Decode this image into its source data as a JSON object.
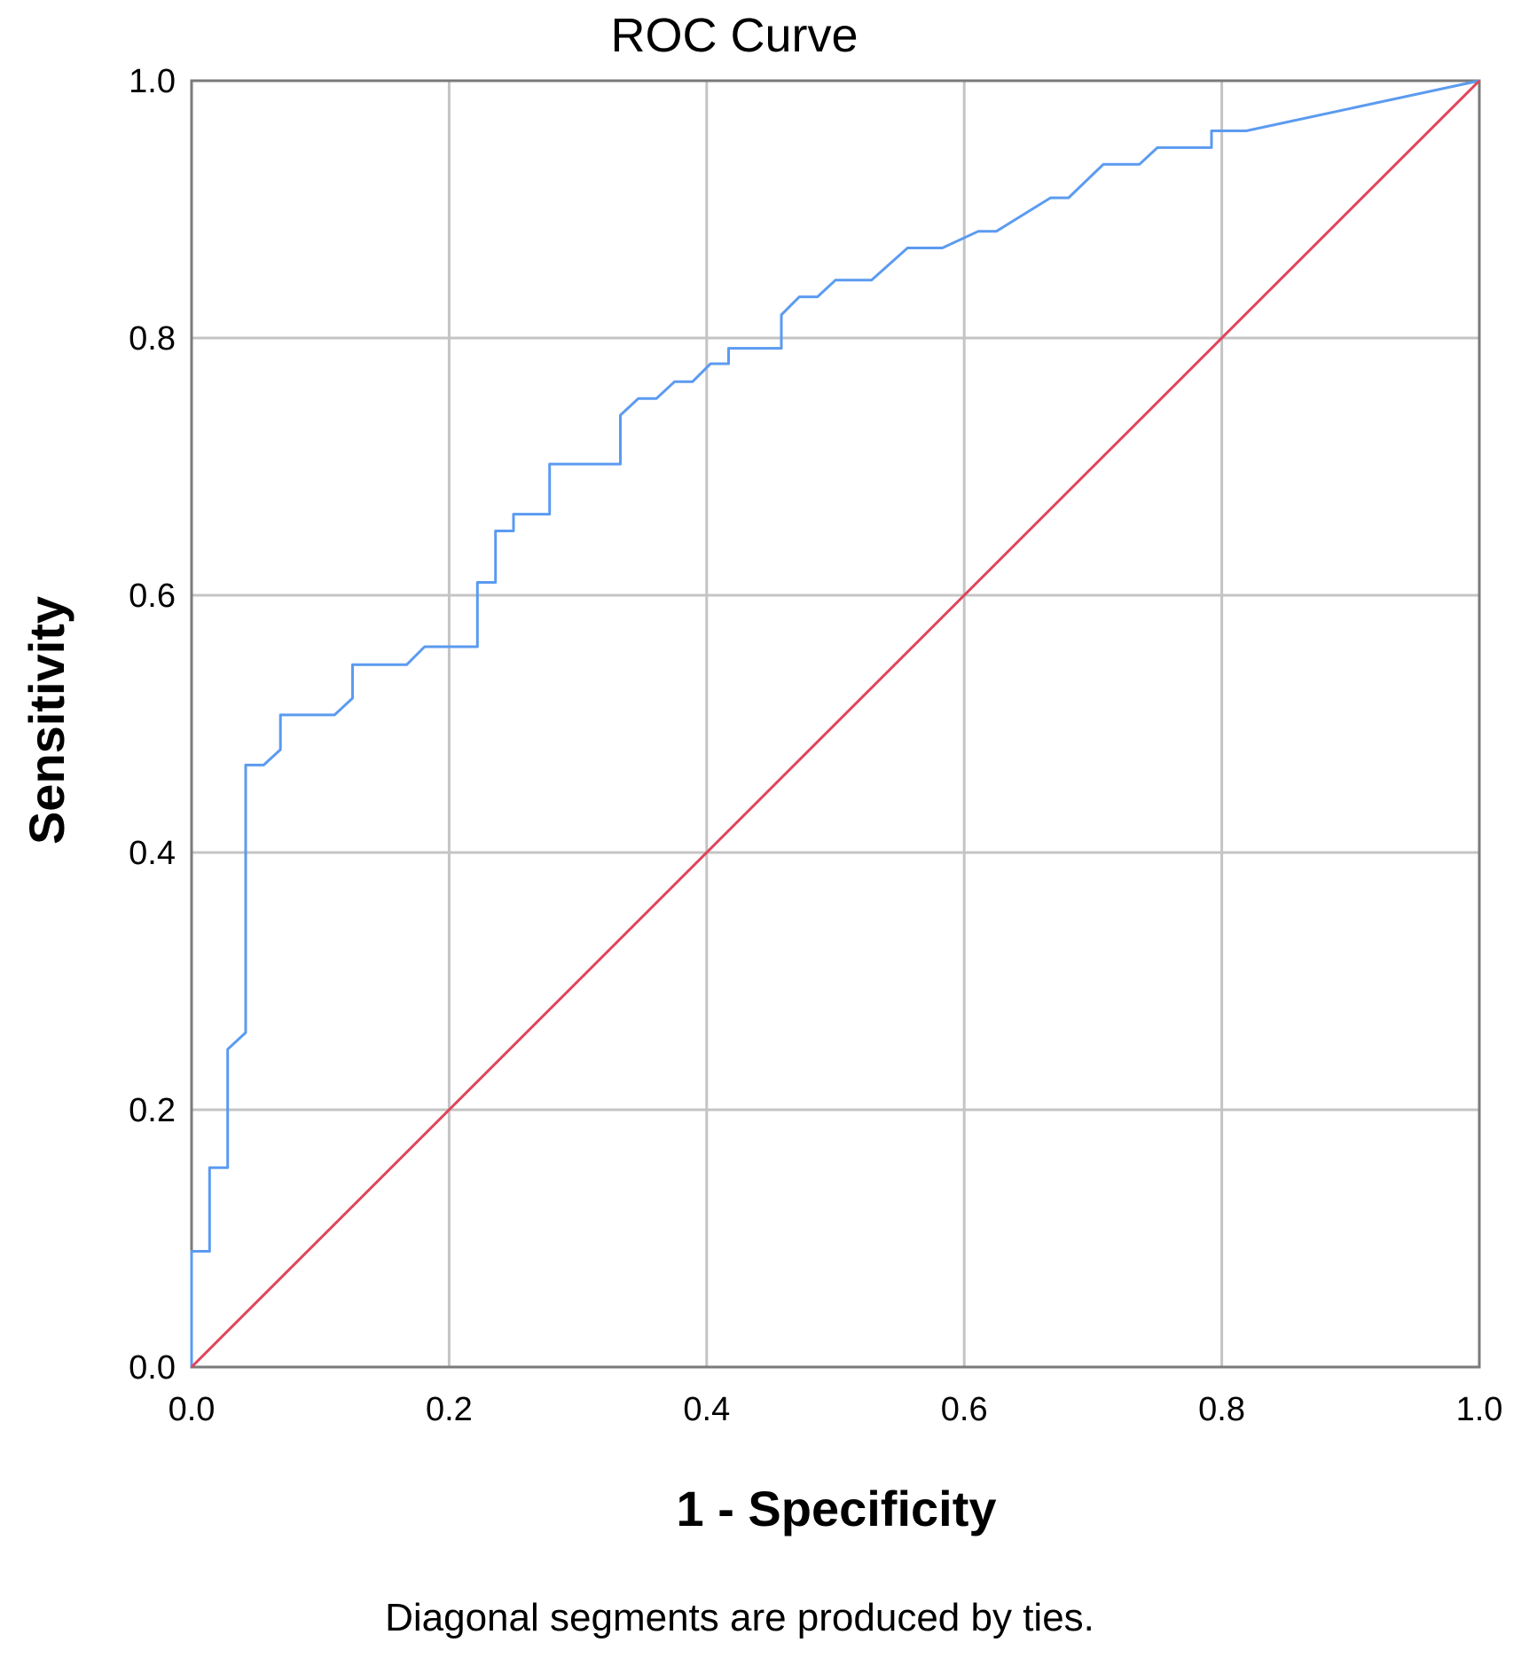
{
  "chart_data": {
    "type": "line",
    "title": "ROC Curve",
    "xlabel": "1 - Specificity",
    "ylabel": "Sensitivity",
    "xlim": [
      0,
      1
    ],
    "ylim": [
      0,
      1
    ],
    "x_ticks": [
      "0.0",
      "0.2",
      "0.4",
      "0.6",
      "0.8",
      "1.0"
    ],
    "y_ticks": [
      "0.0",
      "0.2",
      "0.4",
      "0.6",
      "0.8",
      "1.0"
    ],
    "x_tick_values": [
      0,
      0.2,
      0.4,
      0.6,
      0.8,
      1.0
    ],
    "y_tick_values": [
      0,
      0.2,
      0.4,
      0.6,
      0.8,
      1.0
    ],
    "grid": true,
    "footnote": "Diagonal segments are produced by ties.",
    "series": [
      {
        "color": "#5b9bf0",
        "points": [
          [
            0.0,
            0.0
          ],
          [
            0.0,
            0.09
          ],
          [
            0.014,
            0.09
          ],
          [
            0.014,
            0.155
          ],
          [
            0.028,
            0.155
          ],
          [
            0.028,
            0.247
          ],
          [
            0.042,
            0.26
          ],
          [
            0.042,
            0.468
          ],
          [
            0.056,
            0.468
          ],
          [
            0.069,
            0.48
          ],
          [
            0.069,
            0.507
          ],
          [
            0.111,
            0.507
          ],
          [
            0.125,
            0.52
          ],
          [
            0.125,
            0.546
          ],
          [
            0.167,
            0.546
          ],
          [
            0.181,
            0.56
          ],
          [
            0.222,
            0.56
          ],
          [
            0.222,
            0.61
          ],
          [
            0.236,
            0.61
          ],
          [
            0.236,
            0.65
          ],
          [
            0.25,
            0.65
          ],
          [
            0.25,
            0.663
          ],
          [
            0.278,
            0.663
          ],
          [
            0.278,
            0.702
          ],
          [
            0.333,
            0.702
          ],
          [
            0.333,
            0.74
          ],
          [
            0.347,
            0.753
          ],
          [
            0.361,
            0.753
          ],
          [
            0.375,
            0.766
          ],
          [
            0.389,
            0.766
          ],
          [
            0.403,
            0.78
          ],
          [
            0.417,
            0.78
          ],
          [
            0.417,
            0.792
          ],
          [
            0.458,
            0.792
          ],
          [
            0.458,
            0.818
          ],
          [
            0.472,
            0.832
          ],
          [
            0.486,
            0.832
          ],
          [
            0.5,
            0.845
          ],
          [
            0.528,
            0.845
          ],
          [
            0.556,
            0.87
          ],
          [
            0.583,
            0.87
          ],
          [
            0.611,
            0.883
          ],
          [
            0.625,
            0.883
          ],
          [
            0.667,
            0.909
          ],
          [
            0.681,
            0.909
          ],
          [
            0.708,
            0.935
          ],
          [
            0.736,
            0.935
          ],
          [
            0.75,
            0.948
          ],
          [
            0.792,
            0.948
          ],
          [
            0.792,
            0.961
          ],
          [
            0.819,
            0.961
          ],
          [
            1.0,
            1.0
          ]
        ]
      },
      {
        "color": "#e0455a",
        "points": [
          [
            0.0,
            0.0
          ],
          [
            1.0,
            1.0
          ]
        ]
      }
    ]
  }
}
